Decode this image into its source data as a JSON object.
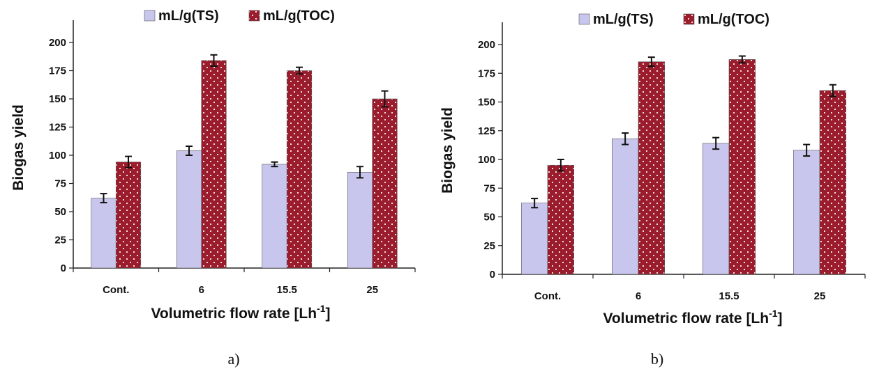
{
  "chart_data": [
    {
      "type": "bar",
      "panel_label": "a)",
      "categories": [
        "Cont.",
        "6",
        "15.5",
        "25"
      ],
      "series": [
        {
          "name": "mL/g(TS)",
          "color": "#c8c6ec",
          "values": [
            62,
            104,
            92,
            85
          ],
          "errors": [
            4,
            4,
            2,
            5
          ]
        },
        {
          "name": "mL/g(TOC)",
          "color": "#9b1c2c",
          "pattern": "dotted",
          "values": [
            94,
            184,
            175,
            150
          ],
          "errors": [
            5,
            5,
            3,
            7
          ]
        }
      ],
      "xlabel": "Volumetric flow rate [Lh",
      "xlabel_sup": "-1",
      "xlabel_end": "]",
      "ylabel": "Biogas yield",
      "ylim": [
        0,
        200
      ],
      "yticks": [
        0,
        25,
        50,
        75,
        100,
        125,
        150,
        175,
        200
      ],
      "ytick_labels": [
        "0",
        "25",
        "50",
        "75",
        "100",
        "125",
        "150",
        "175",
        "200"
      ],
      "legend_position": "top-center",
      "grid": false
    },
    {
      "type": "bar",
      "panel_label": "b)",
      "categories": [
        "Cont.",
        "6",
        "15.5",
        "25"
      ],
      "series": [
        {
          "name": "mL/g(TS)",
          "color": "#c8c6ec",
          "values": [
            62,
            118,
            114,
            108
          ],
          "errors": [
            4,
            5,
            5,
            5
          ]
        },
        {
          "name": "mL/g(TOC)",
          "color": "#9b1c2c",
          "pattern": "dotted",
          "values": [
            95,
            185,
            187,
            160
          ],
          "errors": [
            5,
            4,
            3,
            5
          ]
        }
      ],
      "xlabel": "Volumetric flow rate [Lh",
      "xlabel_sup": "-1",
      "xlabel_end": "]",
      "ylabel": "Biogas yield",
      "ylim": [
        0,
        200
      ],
      "yticks": [
        0,
        25,
        50,
        75,
        100,
        125,
        150,
        175,
        200
      ],
      "ytick_labels": [
        "0",
        "25",
        "50",
        "75",
        "100",
        "125",
        "150",
        "175",
        "200"
      ],
      "legend_position": "top-center",
      "grid": false
    }
  ]
}
